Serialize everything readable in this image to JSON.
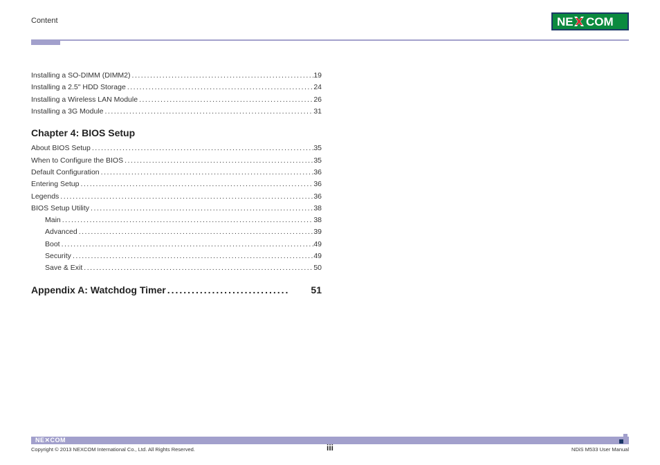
{
  "header": {
    "section_label": "Content"
  },
  "logo": {
    "text_left": "NE",
    "text_right": "COM",
    "bg_color": "#0b8a3f",
    "text_color": "#ffffff",
    "x_color": "#d8232a",
    "border_color": "#1b3866"
  },
  "accent": {
    "line_color": "#a2a0cc"
  },
  "toc": {
    "pre_items": [
      {
        "label": "Installing a SO-DIMM (DIMM2)",
        "page": "19",
        "sub": false
      },
      {
        "label": "Installing a 2.5\" HDD Storage",
        "page": "24",
        "sub": false
      },
      {
        "label": "Installing a Wireless LAN Module",
        "page": "26",
        "sub": false
      },
      {
        "label": "Installing a 3G Module",
        "page": "31",
        "sub": false
      }
    ],
    "chapter4_title": "Chapter 4: BIOS Setup",
    "chapter4_items": [
      {
        "label": "About BIOS Setup",
        "page": "35",
        "sub": false
      },
      {
        "label": "When to Configure the BIOS",
        "page": "35",
        "sub": false
      },
      {
        "label": "Default Configuration",
        "page": "36",
        "sub": false
      },
      {
        "label": "Entering Setup",
        "page": "36",
        "sub": false
      },
      {
        "label": "Legends",
        "page": "36",
        "sub": false
      },
      {
        "label": "BIOS Setup Utility",
        "page": "38",
        "sub": false
      },
      {
        "label": "Main",
        "page": "38",
        "sub": true
      },
      {
        "label": "Advanced",
        "page": "39",
        "sub": true
      },
      {
        "label": "Boot",
        "page": "49",
        "sub": true
      },
      {
        "label": "Security",
        "page": "49",
        "sub": true
      },
      {
        "label": "Save & Exit",
        "page": "50",
        "sub": true
      }
    ],
    "appendix_label": "Appendix A: Watchdog Timer",
    "appendix_page": "51"
  },
  "footer": {
    "mini_logo_text": "NE✕COM",
    "copyright": "Copyright © 2013 NEXCOM International Co., Ltd. All Rights Reserved.",
    "manual": "NDiS M533 User Manual",
    "page_number": "iii",
    "square_colors": {
      "top": "#a2a0cc",
      "left": "#1b3866",
      "right": "#a2a0cc"
    }
  }
}
